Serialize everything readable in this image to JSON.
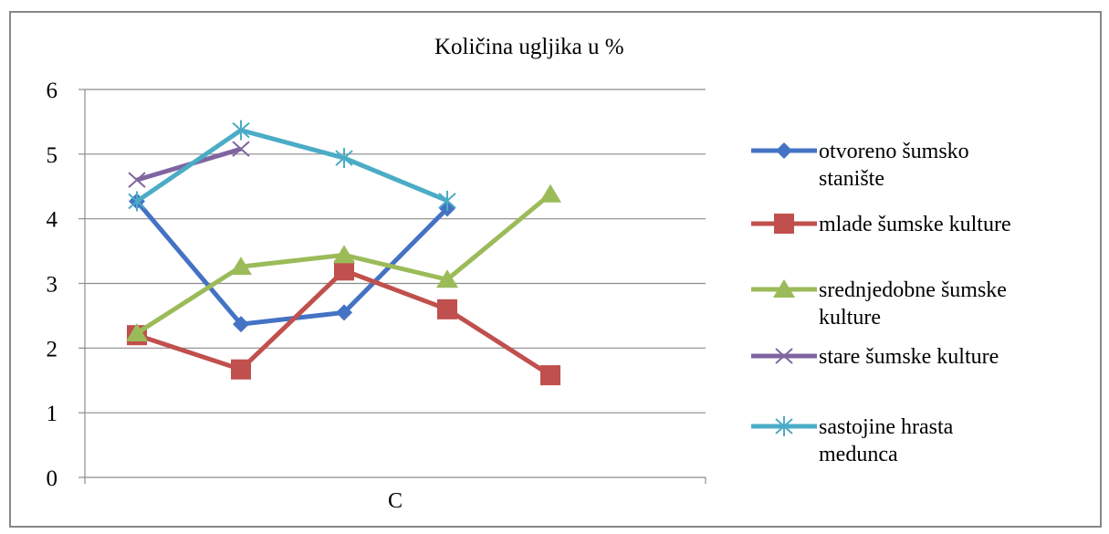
{
  "chart_data": {
    "type": "line",
    "title": "Količina ugljika u %",
    "xlabel": "",
    "ylabel": "",
    "category_label": "C",
    "x": [
      1,
      2,
      3,
      4,
      5
    ],
    "ylim": [
      0,
      6
    ],
    "yticks": [
      "0",
      "1",
      "2",
      "3",
      "4",
      "5",
      "6"
    ],
    "grid": true,
    "legend_position": "right",
    "series": [
      {
        "name": "otvoreno šumsko stanište",
        "name_lines": [
          "otvoreno šumsko",
          "stanište"
        ],
        "color": "#4472c4",
        "marker": "diamond",
        "values": [
          4.27,
          2.37,
          2.55,
          4.16,
          null
        ]
      },
      {
        "name": "mlade šumske kulture",
        "name_lines": [
          "mlade šumske kulture"
        ],
        "color": "#c0504d",
        "marker": "square",
        "values": [
          2.2,
          1.67,
          3.2,
          2.6,
          1.58
        ]
      },
      {
        "name": "srednjedobne šumske kulture",
        "name_lines": [
          "srednjedobne šumske",
          "kulture"
        ],
        "color": "#9bbb59",
        "marker": "triangle",
        "values": [
          2.23,
          3.26,
          3.44,
          3.06,
          4.38
        ]
      },
      {
        "name": "stare šumske kulture",
        "name_lines": [
          "stare šumske kulture"
        ],
        "color": "#8064a2",
        "marker": "x",
        "values": [
          4.6,
          5.08,
          null,
          null,
          null
        ]
      },
      {
        "name": "sastojine hrasta medunca",
        "name_lines": [
          "sastojine hrasta",
          "medunca"
        ],
        "color": "#4bacc6",
        "marker": "star",
        "values": [
          4.27,
          5.37,
          4.94,
          4.28,
          null
        ]
      }
    ]
  }
}
